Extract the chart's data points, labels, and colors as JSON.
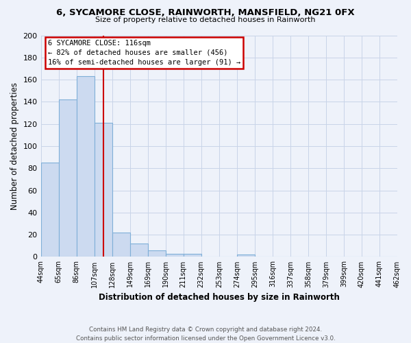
{
  "title1": "6, SYCAMORE CLOSE, RAINWORTH, MANSFIELD, NG21 0FX",
  "title2": "Size of property relative to detached houses in Rainworth",
  "xlabel": "Distribution of detached houses by size in Rainworth",
  "ylabel": "Number of detached properties",
  "bar_values": [
    85,
    142,
    163,
    121,
    22,
    12,
    6,
    3,
    3,
    0,
    0,
    2,
    0,
    0,
    0,
    0,
    0,
    0,
    0,
    0
  ],
  "bar_labels": [
    "44sqm",
    "65sqm",
    "86sqm",
    "107sqm",
    "128sqm",
    "149sqm",
    "169sqm",
    "190sqm",
    "211sqm",
    "232sqm",
    "253sqm",
    "274sqm",
    "295sqm",
    "316sqm",
    "337sqm",
    "358sqm",
    "379sqm",
    "399sqm",
    "420sqm",
    "441sqm",
    "462sqm"
  ],
  "bar_color": "#ccdaf0",
  "bar_edge_color": "#7fafd8",
  "vline_x": 3.5,
  "vline_color": "#cc0000",
  "annotation_title": "6 SYCAMORE CLOSE: 116sqm",
  "annotation_line1": "← 82% of detached houses are smaller (456)",
  "annotation_line2": "16% of semi-detached houses are larger (91) →",
  "box_edge_color": "#cc0000",
  "ylim": [
    0,
    200
  ],
  "yticks": [
    0,
    20,
    40,
    60,
    80,
    100,
    120,
    140,
    160,
    180,
    200
  ],
  "grid_color": "#c8d4e8",
  "footer1": "Contains HM Land Registry data © Crown copyright and database right 2024.",
  "footer2": "Contains public sector information licensed under the Open Government Licence v3.0.",
  "bg_color": "#eef2fa"
}
